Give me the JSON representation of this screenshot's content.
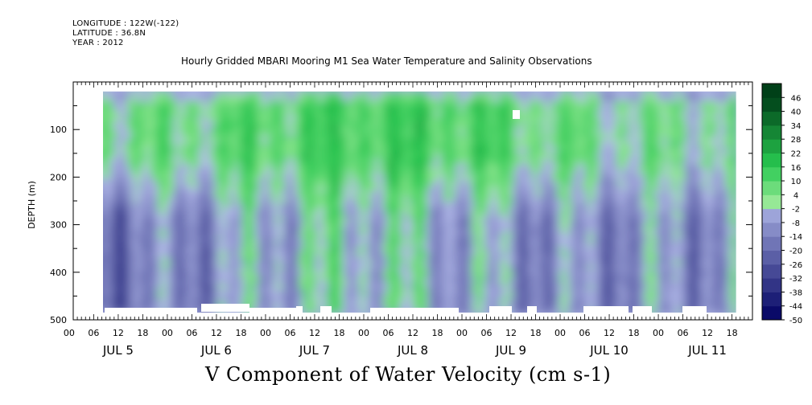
{
  "header": {
    "longitude": "LONGITUDE : 122W(-122)",
    "latitude": "LATITUDE : 36.8N",
    "year": "YEAR : 2012"
  },
  "chart_data": {
    "type": "heatmap",
    "title": "Hourly Gridded MBARI Mooring M1 Sea Water Temperature and Salinity Observations",
    "variable_label": "V Component of Water Velocity (cm s-1)",
    "ylabel": "DEPTH (m)",
    "ylim": [
      500,
      0
    ],
    "y_ticks": [
      100,
      200,
      300,
      400,
      500
    ],
    "x_hour_ticks": [
      "00",
      "06",
      "12",
      "18",
      "00",
      "06",
      "12",
      "18",
      "00",
      "06",
      "12",
      "18",
      "00",
      "06",
      "12",
      "18",
      "00",
      "06",
      "12",
      "18",
      "00",
      "06",
      "12",
      "18",
      "00",
      "06",
      "12",
      "18"
    ],
    "x_day_labels": [
      "JUL 5",
      "JUL 6",
      "JUL 7",
      "JUL 8",
      "JUL 9",
      "JUL 10",
      "JUL 11"
    ],
    "data_extent_hours": [
      5,
      163
    ],
    "data_depth_range_m": [
      20,
      485
    ],
    "colorbar": {
      "levels": [
        -50,
        -44,
        -38,
        -32,
        -26,
        -20,
        -14,
        -8,
        -2,
        4,
        10,
        16,
        22,
        28,
        34,
        40,
        46
      ],
      "min": -50,
      "max": 46
    },
    "field_summary": [
      {
        "day": "JUL 5",
        "upper_0_220m_cm_s": 8,
        "lower_220_485m_cm_s": -18
      },
      {
        "day": "JUL 6",
        "upper_0_220m_cm_s": 6,
        "lower_220_485m_cm_s": -14
      },
      {
        "day": "JUL 7",
        "upper_0_220m_cm_s": 10,
        "lower_220_485m_cm_s": -4
      },
      {
        "day": "JUL 8",
        "upper_0_220m_cm_s": 14,
        "lower_220_485m_cm_s": 2
      },
      {
        "day": "JUL 9",
        "upper_0_220m_cm_s": 12,
        "lower_220_485m_cm_s": -6
      },
      {
        "day": "JUL 10",
        "upper_0_220m_cm_s": 6,
        "lower_220_485m_cm_s": -12
      },
      {
        "day": "JUL 11",
        "upper_0_220m_cm_s": 4,
        "lower_220_485m_cm_s": -10
      }
    ],
    "colors": {
      "negative_max": "#000060",
      "near_zero": "#b8c0ee",
      "positive_max": "#004018"
    }
  }
}
